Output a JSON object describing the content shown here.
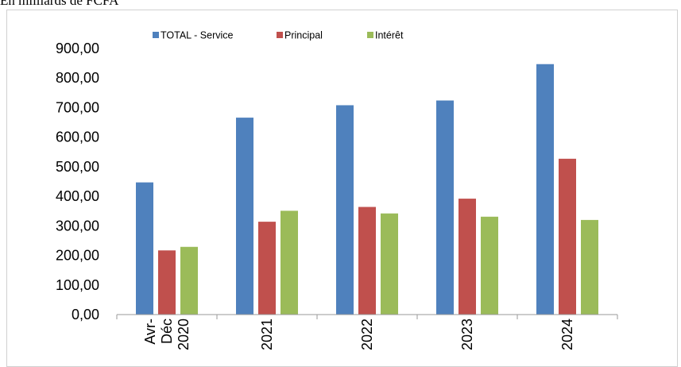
{
  "caption": "En milliards de FCFA",
  "chart_data": {
    "type": "bar",
    "categories": [
      [
        "Avr-",
        "Déc",
        "2020"
      ],
      [
        "2021"
      ],
      [
        "2022"
      ],
      [
        "2023"
      ],
      [
        "2024"
      ]
    ],
    "series": [
      {
        "name": "TOTAL - Service",
        "color": "#4F81BD",
        "values": [
          447,
          666,
          708,
          724,
          847
        ]
      },
      {
        "name": "Principal",
        "color": "#C0504D",
        "values": [
          217,
          314,
          364,
          392,
          527
        ]
      },
      {
        "name": "Intérêt",
        "color": "#9BBB59",
        "values": [
          229,
          351,
          342,
          331,
          320
        ]
      }
    ],
    "ylim": [
      0,
      900
    ],
    "yticks": [
      "0,00",
      "100,00",
      "200,00",
      "300,00",
      "400,00",
      "500,00",
      "600,00",
      "700,00",
      "800,00",
      "900,00"
    ],
    "legend_position": "top",
    "grid": false
  }
}
